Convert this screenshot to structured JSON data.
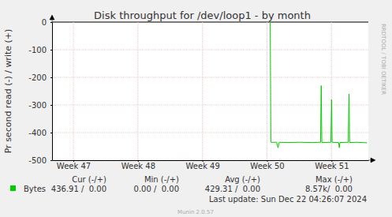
{
  "chart_data": {
    "type": "line",
    "title": "Disk throughput for /dev/loop1 - by month",
    "y_label": "Pr second read (-) / write (+)",
    "x": [
      50.05,
      50.06,
      50.15,
      50.17,
      50.19,
      50.3,
      50.5,
      50.7,
      50.83,
      50.84,
      50.85,
      50.99,
      51.0,
      51.01,
      51.11,
      51.12,
      51.13,
      51.26,
      51.27,
      51.28,
      51.4,
      51.55
    ],
    "series": [
      {
        "name": "Bytes",
        "color": "#00cc00",
        "values": [
          0,
          -435,
          -435,
          -455,
          -435,
          -436,
          -435,
          -436,
          -435,
          -230,
          -436,
          -435,
          -280,
          -435,
          -436,
          -455,
          -436,
          -435,
          -260,
          -436,
          -435,
          -437
        ],
        "stats": [
          "436.91 /  0.00",
          "0.00 /  0.00",
          "429.31 /  0.00",
          "8.57k/  0.00"
        ]
      }
    ],
    "stats_columns": [
      "Cur (-/+)",
      "Min (-/+)",
      "Avg (-/+)",
      "Max (-/+)"
    ],
    "xlim": [
      46.67,
      51.57
    ],
    "xticks": [
      {
        "value": 47,
        "label": "Week 47"
      },
      {
        "value": 48,
        "label": "Week 48"
      },
      {
        "value": 49,
        "label": "Week 49"
      },
      {
        "value": 50,
        "label": "Week 50"
      },
      {
        "value": 51,
        "label": "Week 51"
      }
    ],
    "ylim": [
      -500,
      0
    ],
    "yticks": [
      0,
      -100,
      -200,
      -300,
      -400,
      -500
    ],
    "grid": true,
    "footer": "Last update: Sun Dec 22 04:26:07 2024",
    "credit": "Munin 2.0.57",
    "watermark": "RRDTOOL / TOBI OETIKER"
  }
}
